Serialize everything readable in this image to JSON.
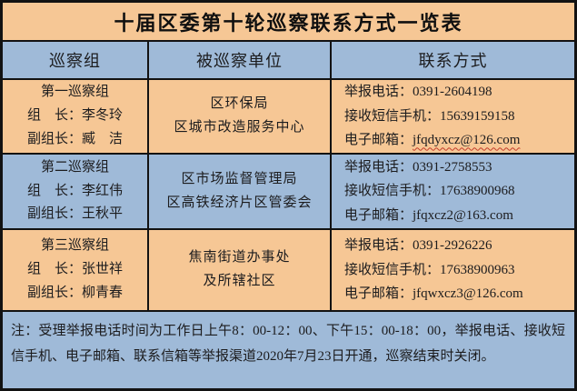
{
  "colors": {
    "peach": "#F6C795",
    "blue": "#9FBAD8",
    "border": "#121212",
    "text": "#1C1C1E",
    "squiggle": "#C43C2A"
  },
  "title": "十届区委第十轮巡察联系方式一览表",
  "header": {
    "group": "巡察组",
    "unit": "被巡察单位",
    "contact": "联系方式"
  },
  "labels": {
    "phone": "举报电话：",
    "sms": "接收短信手机：",
    "email": "电子邮箱："
  },
  "rows": [
    {
      "group": {
        "name": "第一巡察组",
        "leader": "组　长：李冬玲",
        "deputy": "副组长：臧　洁"
      },
      "unit_lines": {
        "0": "区环保局",
        "1": "区城市改造服务中心"
      },
      "contact": {
        "phone": "0391-2604198",
        "sms": "15639159158",
        "email": "jfqdyxcz@126.com",
        "email_squiggle": true
      }
    },
    {
      "group": {
        "name": "第二巡察组",
        "leader": "组　长：李红伟",
        "deputy": "副组长：王秋平"
      },
      "unit_lines": {
        "0": "区市场监督管理局",
        "1": "区高铁经济片区管委会"
      },
      "contact": {
        "phone": "0391-2758553",
        "sms": "17638900968",
        "email": "jfqxcz2@163.com",
        "email_squiggle": false
      }
    },
    {
      "group": {
        "name": "第三巡察组",
        "leader": "组　长：张世祥",
        "deputy": "副组长：柳青春"
      },
      "unit_lines": {
        "0": "焦南街道办事处",
        "1": "及所辖社区"
      },
      "contact": {
        "phone": "0391-2926226",
        "sms": "17638900963",
        "email": "jfqwxcz3@126.com",
        "email_squiggle": false
      }
    }
  ],
  "note": "注：受理举报电话时间为工作日上午8：00-12：00、下午15：00-18：00，举报电话、接收短信手机、电子邮箱、联系信箱等举报渠道2020年7月23日开通，巡察结束时关闭。"
}
